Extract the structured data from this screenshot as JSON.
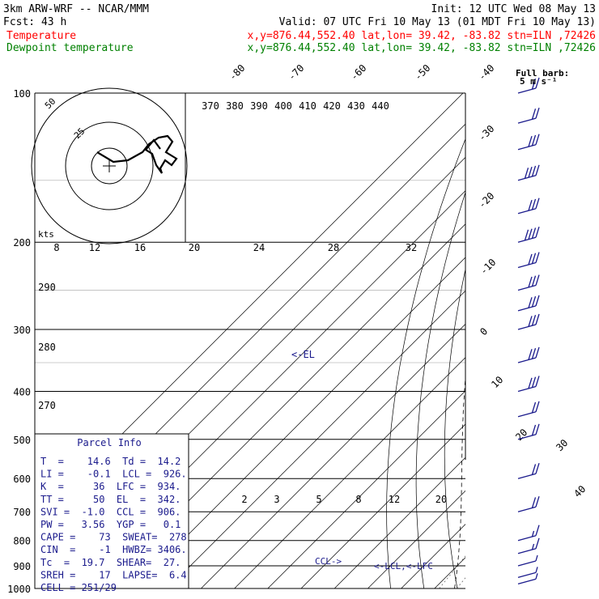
{
  "header": {
    "model": "3km ARW-WRF -- NCAR/MMM",
    "init": "Init: 12 UTC Wed 08 May 13",
    "fcst": "Fcst:   43 h",
    "valid": "Valid: 07 UTC Fri 10 May 13 (01 MDT Fri 10 May 13)",
    "temp_label": "Temperature",
    "temp_loc": "x,y=876.44,552.40   lat,lon= 39.42, -83.82  stn=ILN ,72426",
    "dew_label": "Dewpoint temperature",
    "dew_loc": "x,y=876.44,552.40   lat,lon= 39.42, -83.82  stn=ILN ,72426"
  },
  "colors": {
    "temperature": "#ff0000",
    "dewpoint": "#008000",
    "text_blue": "#1a1a8c",
    "barbs": "#1a1a8c"
  },
  "legend": {
    "barb_title": "Full barb:",
    "barb_value": "5 m s⁻¹"
  },
  "chart_data": {
    "type": "skew-t",
    "pressure_axis_labels": [
      "100",
      "200",
      "300",
      "400",
      "500",
      "600",
      "700",
      "800",
      "900",
      "1000"
    ],
    "isotherm_labels": [
      "-80",
      "-70",
      "-60",
      "-50",
      "-40",
      "-30",
      "-20",
      "-10",
      "0",
      "10",
      "20",
      "30",
      "40"
    ],
    "theta_labels": [
      "370",
      "380",
      "390",
      "400",
      "410",
      "420",
      "430",
      "440"
    ],
    "theta_lower_labels": [
      "290",
      "280",
      "270"
    ],
    "mixing_ratio_labels": [
      "2",
      "3",
      "5",
      "8",
      "12",
      "20"
    ],
    "hodograph": {
      "unit": "kts",
      "ring_labels": [
        "50",
        "25"
      ],
      "wind_labels": [
        "8",
        "12",
        "16",
        "20",
        "24",
        "28",
        "32"
      ]
    },
    "annotations": {
      "el": "<-EL",
      "ccl": "CCL->",
      "lcl_lfc": "<-LCL,<-LFC"
    },
    "temperature": [
      {
        "p": 979,
        "t": 14.6
      },
      {
        "p": 950,
        "t": 14.9
      },
      {
        "p": 900,
        "t": 13.0
      },
      {
        "p": 850,
        "t": 10.8
      },
      {
        "p": 800,
        "t": 8.0
      },
      {
        "p": 700,
        "t": 2.2
      },
      {
        "p": 640,
        "t": -1.0
      },
      {
        "p": 600,
        "t": -4.0
      },
      {
        "p": 560,
        "t": -7.7
      },
      {
        "p": 500,
        "t": -12.5
      },
      {
        "p": 450,
        "t": -17.5
      },
      {
        "p": 400,
        "t": -23.5
      },
      {
        "p": 350,
        "t": -31.0
      },
      {
        "p": 300,
        "t": -39.5
      },
      {
        "p": 250,
        "t": -49.5
      },
      {
        "p": 200,
        "t": -58.5
      },
      {
        "p": 180,
        "t": -60.0
      },
      {
        "p": 165,
        "t": -57.0
      },
      {
        "p": 150,
        "t": -55.5
      },
      {
        "p": 130,
        "t": -55.5
      },
      {
        "p": 115,
        "t": -57.5
      },
      {
        "p": 100,
        "t": -60.0
      }
    ],
    "dewpoint": [
      {
        "p": 979,
        "t": 14.2
      },
      {
        "p": 950,
        "t": 13.2
      },
      {
        "p": 900,
        "t": 11.0
      },
      {
        "p": 850,
        "t": 7.5
      },
      {
        "p": 800,
        "t": 4.0
      },
      {
        "p": 700,
        "t": -1.5
      },
      {
        "p": 640,
        "t": -5.5
      },
      {
        "p": 600,
        "t": -10.0
      },
      {
        "p": 560,
        "t": -19.0
      },
      {
        "p": 525,
        "t": -20.5
      },
      {
        "p": 500,
        "t": -23.0
      },
      {
        "p": 450,
        "t": -33.0
      },
      {
        "p": 400,
        "t": -41.0
      },
      {
        "p": 350,
        "t": -45.5
      },
      {
        "p": 320,
        "t": -53.0
      },
      {
        "p": 300,
        "t": -59.0
      },
      {
        "p": 270,
        "t": -62.5
      },
      {
        "p": 240,
        "t": -68.0
      },
      {
        "p": 200,
        "t": -73.0
      },
      {
        "p": 160,
        "t": -78.0
      },
      {
        "p": 130,
        "t": -81.0
      },
      {
        "p": 110,
        "t": -85.5
      },
      {
        "p": 100,
        "t": -90.0
      }
    ],
    "wind_barbs": [
      {
        "p": 100,
        "half": 0,
        "full": 2
      },
      {
        "p": 115,
        "half": 0,
        "full": 2
      },
      {
        "p": 130,
        "half": 0,
        "full": 3
      },
      {
        "p": 150,
        "half": 0,
        "full": 4
      },
      {
        "p": 175,
        "half": 0,
        "full": 3
      },
      {
        "p": 200,
        "half": 0,
        "full": 4
      },
      {
        "p": 225,
        "half": 0,
        "full": 3
      },
      {
        "p": 250,
        "half": 0,
        "full": 3
      },
      {
        "p": 275,
        "half": 0,
        "full": 3
      },
      {
        "p": 300,
        "half": 0,
        "full": 3
      },
      {
        "p": 350,
        "half": 0,
        "full": 3
      },
      {
        "p": 400,
        "half": 0,
        "full": 3
      },
      {
        "p": 450,
        "half": 0,
        "full": 2
      },
      {
        "p": 500,
        "half": 0,
        "full": 2
      },
      {
        "p": 600,
        "half": 0,
        "full": 2
      },
      {
        "p": 700,
        "half": 0,
        "full": 2
      },
      {
        "p": 800,
        "half": 1,
        "full": 1
      },
      {
        "p": 850,
        "half": 1,
        "full": 1
      },
      {
        "p": 900,
        "half": 1,
        "full": 0
      },
      {
        "p": 950,
        "half": 1,
        "full": 0
      },
      {
        "p": 979,
        "half": 1,
        "full": 0
      }
    ]
  },
  "parcel_info": {
    "title": "Parcel Info",
    "rows": [
      "T  =    14.6  Td =  14.2",
      "LI =    -0.1  LCL =  926.",
      "K  =     36  LFC =  934.",
      "TT =     50  EL  =  342.",
      "SVI =  -1.0  CCL =  906.",
      "PW =   3.56  YGP =   0.1",
      "CAPE =    73  SWEAT=  278",
      "CIN  =    -1  HWBZ= 3406.",
      "Tc  =  19.7  SHEAR=  27.",
      "SREH =    17  LAPSE=  6.4",
      "CELL = 251/29"
    ]
  }
}
